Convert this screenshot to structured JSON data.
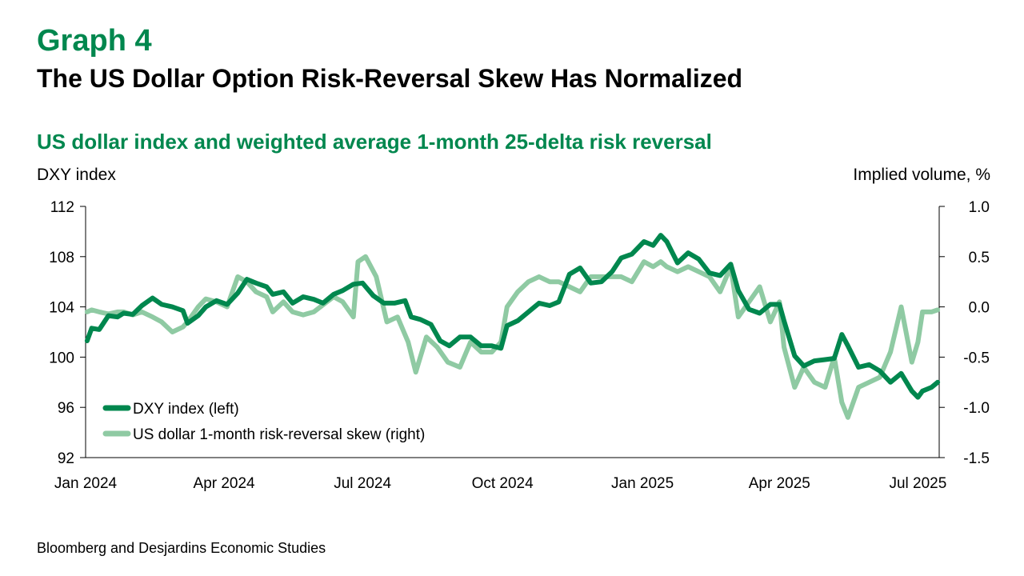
{
  "header": {
    "graph_number": "Graph 4",
    "title": "The US Dollar Option Risk-Reversal Skew Has Normalized"
  },
  "source": "Bloomberg and Desjardins Economic Studies",
  "colors": {
    "title_green": "#00874e",
    "dxy_line": "#00874e",
    "skew_line": "#8fcaa3",
    "axis": "#000000"
  },
  "chart_data": {
    "type": "line",
    "title": "US dollar index and weighted average 1-month 25-delta risk reversal",
    "ylabel_left": "DXY index",
    "ylabel_right": "Implied volume, %",
    "ylim_left": [
      92,
      112
    ],
    "ylim_right": [
      -1.5,
      1.0
    ],
    "yticks_left": [
      "112",
      "108",
      "104",
      "100",
      "96",
      "92"
    ],
    "yticks_right": [
      "1.0",
      "0.5",
      "0.0",
      "-0.5",
      "-1.0",
      "-1.5"
    ],
    "xlim": [
      "2024-01-01",
      "2025-07-15"
    ],
    "xticks": [
      {
        "label": "Jan 2024",
        "date": "2024-01-01"
      },
      {
        "label": "Apr 2024",
        "date": "2024-04-01"
      },
      {
        "label": "Jul 2024",
        "date": "2024-07-01"
      },
      {
        "label": "Oct 2024",
        "date": "2024-10-01"
      },
      {
        "label": "Jan 2025",
        "date": "2025-01-01"
      },
      {
        "label": "Apr 2025",
        "date": "2025-04-01"
      },
      {
        "label": "Jul 2025",
        "date": "2025-07-01"
      }
    ],
    "grid": false,
    "legend_position": "bottom-left",
    "series": [
      {
        "name": "DXY index (left)",
        "axis": "left",
        "x": [
          "2024-01-02",
          "2024-01-05",
          "2024-01-10",
          "2024-01-16",
          "2024-01-22",
          "2024-01-26",
          "2024-02-01",
          "2024-02-07",
          "2024-02-14",
          "2024-02-20",
          "2024-02-27",
          "2024-03-05",
          "2024-03-08",
          "2024-03-15",
          "2024-03-20",
          "2024-03-27",
          "2024-04-03",
          "2024-04-10",
          "2024-04-16",
          "2024-04-22",
          "2024-04-29",
          "2024-05-03",
          "2024-05-10",
          "2024-05-16",
          "2024-05-23",
          "2024-05-30",
          "2024-06-05",
          "2024-06-12",
          "2024-06-18",
          "2024-06-25",
          "2024-07-01",
          "2024-07-08",
          "2024-07-15",
          "2024-07-22",
          "2024-07-29",
          "2024-08-02",
          "2024-08-08",
          "2024-08-15",
          "2024-08-21",
          "2024-08-27",
          "2024-09-03",
          "2024-09-10",
          "2024-09-17",
          "2024-09-24",
          "2024-09-30",
          "2024-10-04",
          "2024-10-11",
          "2024-10-18",
          "2024-10-25",
          "2024-11-01",
          "2024-11-07",
          "2024-11-14",
          "2024-11-21",
          "2024-11-28",
          "2024-12-05",
          "2024-12-12",
          "2024-12-18",
          "2024-12-25",
          "2025-01-02",
          "2025-01-08",
          "2025-01-13",
          "2025-01-17",
          "2025-01-24",
          "2025-01-31",
          "2025-02-07",
          "2025-02-14",
          "2025-02-21",
          "2025-02-28",
          "2025-03-05",
          "2025-03-12",
          "2025-03-19",
          "2025-03-26",
          "2025-04-01",
          "2025-04-04",
          "2025-04-11",
          "2025-04-17",
          "2025-04-24",
          "2025-05-01",
          "2025-05-07",
          "2025-05-12",
          "2025-05-16",
          "2025-05-23",
          "2025-05-30",
          "2025-06-06",
          "2025-06-13",
          "2025-06-20",
          "2025-06-27",
          "2025-07-01",
          "2025-07-04",
          "2025-07-10",
          "2025-07-14"
        ],
        "values": [
          101.3,
          102.3,
          102.2,
          103.3,
          103.2,
          103.5,
          103.4,
          104.1,
          104.7,
          104.2,
          104.0,
          103.7,
          102.7,
          103.3,
          104.0,
          104.5,
          104.2,
          105.1,
          106.2,
          105.9,
          105.6,
          105.0,
          105.2,
          104.3,
          104.8,
          104.6,
          104.3,
          105.0,
          105.3,
          105.8,
          105.9,
          104.9,
          104.3,
          104.3,
          104.5,
          103.2,
          103.0,
          102.6,
          101.3,
          100.9,
          101.6,
          101.6,
          100.9,
          100.9,
          100.7,
          102.5,
          102.9,
          103.6,
          104.3,
          104.1,
          104.4,
          106.6,
          107.1,
          105.9,
          106.0,
          106.8,
          107.9,
          108.2,
          109.2,
          108.9,
          109.7,
          109.2,
          107.5,
          108.3,
          107.8,
          106.7,
          106.5,
          107.4,
          105.3,
          103.8,
          103.5,
          104.2,
          104.2,
          102.9,
          100.1,
          99.3,
          99.7,
          99.8,
          99.9,
          101.8,
          100.9,
          99.2,
          99.4,
          98.9,
          98.0,
          98.7,
          97.3,
          96.8,
          97.3,
          97.6,
          98.0
        ]
      },
      {
        "name": "US dollar 1-month risk-reversal skew (right)",
        "axis": "right",
        "x": [
          "2024-01-02",
          "2024-01-05",
          "2024-01-10",
          "2024-01-16",
          "2024-01-22",
          "2024-01-26",
          "2024-02-01",
          "2024-02-07",
          "2024-02-14",
          "2024-02-20",
          "2024-02-27",
          "2024-03-05",
          "2024-03-08",
          "2024-03-15",
          "2024-03-20",
          "2024-03-27",
          "2024-04-03",
          "2024-04-10",
          "2024-04-16",
          "2024-04-22",
          "2024-04-29",
          "2024-05-03",
          "2024-05-10",
          "2024-05-16",
          "2024-05-23",
          "2024-05-30",
          "2024-06-05",
          "2024-06-12",
          "2024-06-18",
          "2024-06-25",
          "2024-06-28",
          "2024-07-03",
          "2024-07-10",
          "2024-07-17",
          "2024-07-24",
          "2024-07-31",
          "2024-08-05",
          "2024-08-12",
          "2024-08-19",
          "2024-08-26",
          "2024-09-03",
          "2024-09-10",
          "2024-09-17",
          "2024-09-24",
          "2024-09-30",
          "2024-10-04",
          "2024-10-11",
          "2024-10-18",
          "2024-10-25",
          "2024-11-01",
          "2024-11-07",
          "2024-11-14",
          "2024-11-21",
          "2024-11-28",
          "2024-12-05",
          "2024-12-12",
          "2024-12-18",
          "2024-12-25",
          "2025-01-02",
          "2025-01-08",
          "2025-01-13",
          "2025-01-17",
          "2025-01-24",
          "2025-01-31",
          "2025-02-07",
          "2025-02-14",
          "2025-02-21",
          "2025-02-28",
          "2025-03-05",
          "2025-03-12",
          "2025-03-19",
          "2025-03-26",
          "2025-04-01",
          "2025-04-04",
          "2025-04-11",
          "2025-04-17",
          "2025-04-24",
          "2025-05-01",
          "2025-05-07",
          "2025-05-12",
          "2025-05-16",
          "2025-05-23",
          "2025-05-30",
          "2025-06-06",
          "2025-06-13",
          "2025-06-20",
          "2025-06-27",
          "2025-07-01",
          "2025-07-04",
          "2025-07-10",
          "2025-07-14"
        ],
        "values": [
          -0.05,
          -0.03,
          -0.05,
          -0.07,
          -0.05,
          -0.05,
          -0.08,
          -0.05,
          -0.1,
          -0.15,
          -0.25,
          -0.2,
          -0.15,
          0.0,
          0.08,
          0.05,
          0.0,
          0.3,
          0.25,
          0.15,
          0.1,
          -0.05,
          0.05,
          -0.05,
          -0.08,
          -0.05,
          0.02,
          0.1,
          0.05,
          -0.1,
          0.45,
          0.5,
          0.3,
          -0.15,
          -0.1,
          -0.35,
          -0.65,
          -0.3,
          -0.4,
          -0.55,
          -0.6,
          -0.35,
          -0.45,
          -0.45,
          -0.35,
          0.0,
          0.15,
          0.25,
          0.3,
          0.25,
          0.25,
          0.2,
          0.15,
          0.3,
          0.3,
          0.3,
          0.3,
          0.25,
          0.45,
          0.4,
          0.45,
          0.4,
          0.35,
          0.4,
          0.35,
          0.3,
          0.15,
          0.4,
          -0.1,
          0.05,
          0.2,
          -0.15,
          0.05,
          -0.4,
          -0.8,
          -0.6,
          -0.75,
          -0.8,
          -0.5,
          -0.95,
          -1.1,
          -0.8,
          -0.75,
          -0.7,
          -0.45,
          0.0,
          -0.55,
          -0.35,
          -0.05,
          -0.05,
          -0.03
        ]
      }
    ]
  }
}
